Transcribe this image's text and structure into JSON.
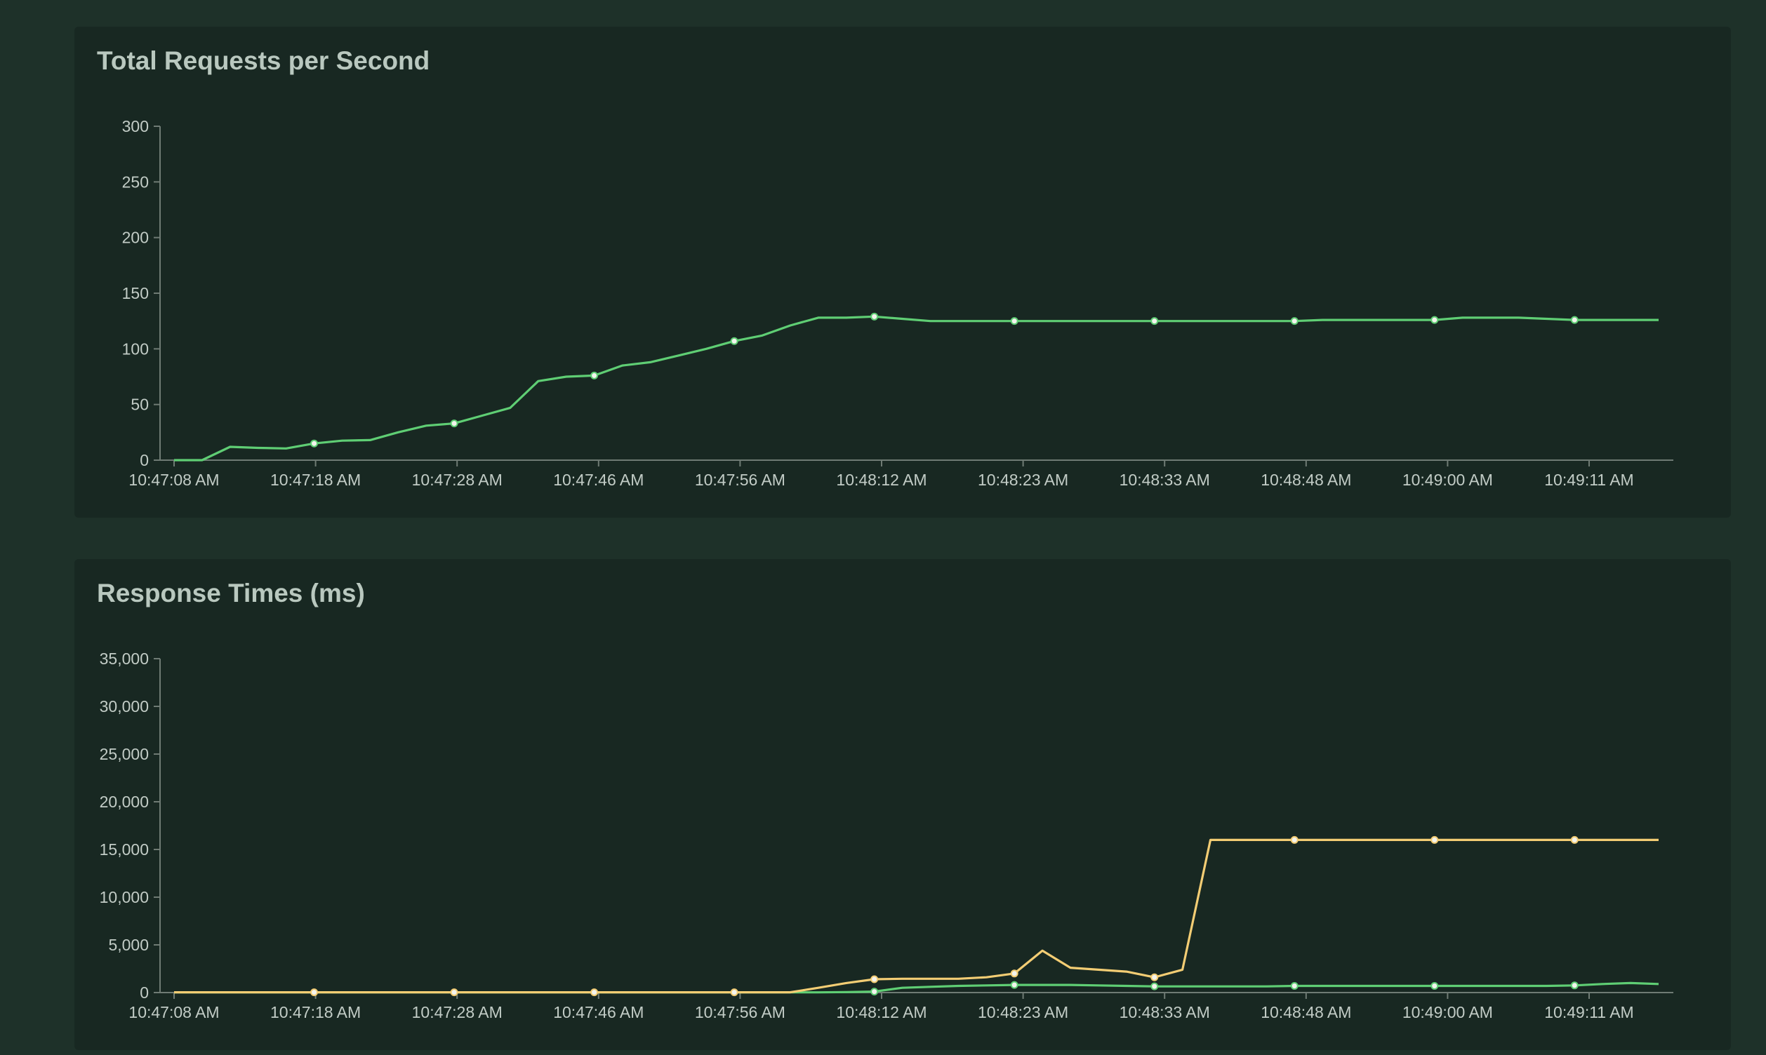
{
  "chart_data": [
    {
      "type": "line",
      "title": "Total Requests per Second",
      "xlabel": "",
      "ylabel": "",
      "ylim": [
        0,
        300
      ],
      "yticks": [
        "0",
        "50",
        "100",
        "150",
        "200",
        "250",
        "300"
      ],
      "yvalues": [
        0,
        50,
        100,
        150,
        200,
        250,
        300
      ],
      "xticks": [
        "10:47:08 AM",
        "10:47:18 AM",
        "10:47:28 AM",
        "10:47:46 AM",
        "10:47:56 AM",
        "10:48:12 AM",
        "10:48:23 AM",
        "10:48:33 AM",
        "10:48:48 AM",
        "10:49:00 AM",
        "10:49:11 AM"
      ],
      "grid": false,
      "legend": "none",
      "colors": {
        "line": "#5fce74"
      },
      "series": [
        {
          "color": "#5fce74",
          "values": [
            0,
            0,
            12,
            11,
            10.5,
            15,
            17.5,
            18,
            25,
            31,
            33,
            40,
            47,
            71,
            75,
            76,
            85,
            88,
            94,
            100,
            107,
            112,
            121,
            128,
            128,
            129,
            127,
            125,
            125,
            125,
            125,
            125,
            125,
            125,
            125,
            125,
            125,
            125,
            125,
            125,
            125,
            126,
            126,
            126,
            126,
            126,
            128,
            128,
            128,
            127,
            126,
            126,
            126,
            126
          ],
          "marker_every": 5
        }
      ]
    },
    {
      "type": "line",
      "title": "Response Times (ms)",
      "xlabel": "",
      "ylabel": "",
      "ylim": [
        0,
        35000
      ],
      "yticks": [
        "0",
        "5,000",
        "10,000",
        "15,000",
        "20,000",
        "25,000",
        "30,000",
        "35,000"
      ],
      "yvalues": [
        0,
        5000,
        10000,
        15000,
        20000,
        25000,
        30000,
        35000
      ],
      "xticks": [
        "10:47:08 AM",
        "10:47:18 AM",
        "10:47:28 AM",
        "10:47:46 AM",
        "10:47:56 AM",
        "10:48:12 AM",
        "10:48:23 AM",
        "10:48:33 AM",
        "10:48:48 AM",
        "10:49:00 AM",
        "10:49:11 AM"
      ],
      "grid": false,
      "legend": "none",
      "colors": {
        "series_1": "#5fce74",
        "series_2": "#f3cd74"
      },
      "series": [
        {
          "color": "#5fce74",
          "values": [
            20,
            20,
            20,
            20,
            20,
            20,
            20,
            20,
            20,
            20,
            20,
            20,
            20,
            20,
            20,
            20,
            20,
            20,
            20,
            20,
            20,
            20,
            20,
            20,
            50,
            100,
            500,
            600,
            700,
            750,
            800,
            800,
            800,
            750,
            700,
            650,
            650,
            650,
            650,
            650,
            700,
            700,
            700,
            700,
            700,
            700,
            700,
            700,
            700,
            700,
            750,
            900,
            1000,
            900
          ],
          "marker_every": 5,
          "marker_start": 25
        },
        {
          "color": "#f3cd74",
          "values": [
            30,
            30,
            30,
            30,
            30,
            30,
            30,
            30,
            30,
            30,
            30,
            30,
            30,
            30,
            30,
            30,
            30,
            30,
            30,
            30,
            30,
            30,
            30,
            500,
            1000,
            1400,
            1450,
            1450,
            1450,
            1600,
            2000,
            4400,
            2600,
            2400,
            2200,
            1600,
            2400,
            16000,
            16000,
            16000,
            16000,
            16000,
            16000,
            16000,
            16000,
            16000,
            16000,
            16000,
            16000,
            16000,
            16000,
            16000,
            16000,
            16000
          ],
          "marker_every": 5
        }
      ]
    }
  ]
}
